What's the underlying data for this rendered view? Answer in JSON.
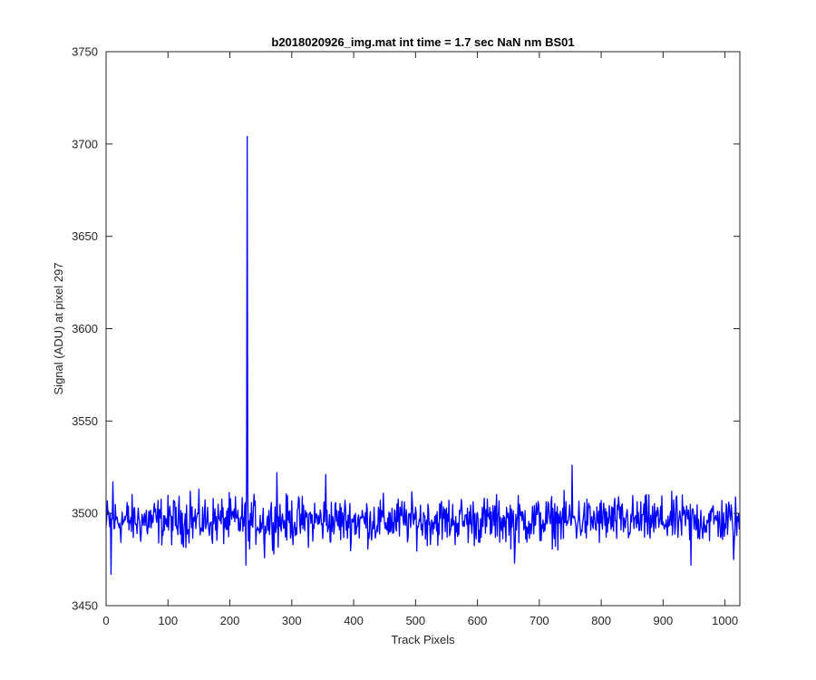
{
  "chart_data": {
    "type": "line",
    "title": "b2018020926_img.mat int time = 1.7 sec  NaN nm BS01",
    "xlabel": "Track Pixels",
    "ylabel": "Signal (ADU) at pixel 297",
    "xlim": [
      0,
      1024
    ],
    "ylim": [
      3450,
      3750
    ],
    "xticks": [
      0,
      100,
      200,
      300,
      400,
      500,
      600,
      700,
      800,
      900,
      1000
    ],
    "yticks": [
      3450,
      3500,
      3550,
      3600,
      3650,
      3700,
      3750
    ],
    "grid": false,
    "series": [
      {
        "color": "#0000ff",
        "baseline": 3496,
        "noise_range": [
          3471,
          3517
        ],
        "points": [
          {
            "x": 0,
            "y": 3493
          },
          {
            "x": 8,
            "y": 3467
          },
          {
            "x": 11,
            "y": 3517
          },
          {
            "x": 136,
            "y": 3512
          },
          {
            "x": 226,
            "y": 3472
          },
          {
            "x": 227,
            "y": 3520
          },
          {
            "x": 228,
            "y": 3704
          },
          {
            "x": 229,
            "y": 3510
          },
          {
            "x": 230,
            "y": 3485
          },
          {
            "x": 256,
            "y": 3476
          },
          {
            "x": 276,
            "y": 3522
          },
          {
            "x": 355,
            "y": 3521
          },
          {
            "x": 660,
            "y": 3473
          },
          {
            "x": 753,
            "y": 3526
          },
          {
            "x": 945,
            "y": 3472
          },
          {
            "x": 1014,
            "y": 3475
          },
          {
            "x": 1024,
            "y": 3494
          }
        ]
      }
    ]
  }
}
